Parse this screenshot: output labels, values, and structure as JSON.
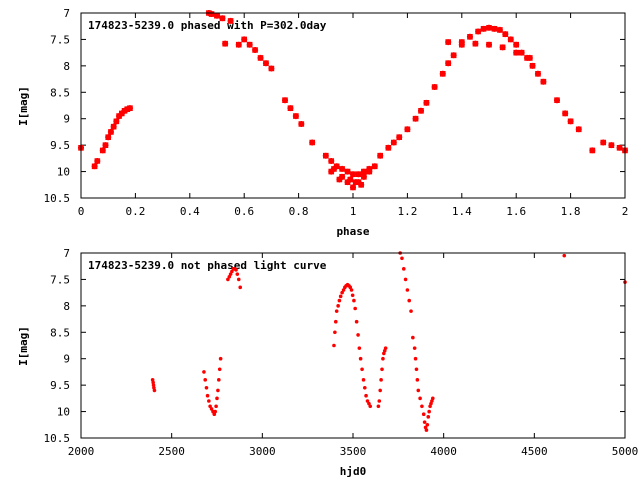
{
  "chart_data": [
    {
      "type": "scatter",
      "title": "174823-5239.0 phased with P=302.0day",
      "xlabel": "phase",
      "ylabel": "I[mag]",
      "xlim": [
        0,
        2
      ],
      "ylim": [
        10.5,
        7
      ],
      "y_inverted": true,
      "xticks": [
        0,
        0.2,
        0.4,
        0.6,
        0.8,
        1,
        1.2,
        1.4,
        1.6,
        1.8,
        2
      ],
      "xtick_labels": [
        "0",
        "0.2",
        "0.4",
        "0.6",
        "0.8",
        "1",
        "1.2",
        "1.4",
        "1.6",
        "1.8",
        "2"
      ],
      "yticks": [
        7,
        7.5,
        8,
        8.5,
        9,
        9.5,
        10,
        10.5
      ],
      "ytick_labels": [
        "7",
        "7.5",
        "8",
        "8.5",
        "9",
        "9.5",
        "10",
        "10.5"
      ],
      "marker_color": "#ff0000",
      "marker": "plus",
      "grid": false,
      "series": [
        {
          "x": [
            0.0,
            0.05,
            0.06,
            0.08,
            0.09,
            0.1,
            0.11,
            0.12,
            0.13,
            0.14,
            0.15,
            0.16,
            0.17,
            0.18,
            0.47,
            0.48,
            0.5,
            0.52,
            0.55,
            0.6,
            0.62,
            0.64,
            0.66,
            0.68,
            0.7,
            0.75,
            0.77,
            0.79,
            0.81,
            0.85,
            0.9,
            0.92,
            0.94,
            0.96,
            0.98,
            1.0,
            1.02,
            1.04,
            1.06,
            1.1,
            1.13,
            1.15,
            1.17,
            1.2,
            1.23,
            1.25,
            1.27,
            1.3,
            1.33,
            1.35,
            1.37,
            1.4,
            1.43,
            1.46,
            1.48,
            1.5,
            1.52,
            1.54,
            1.56,
            1.58,
            1.6,
            1.62,
            1.64,
            1.66,
            1.68,
            1.7,
            1.75,
            1.78,
            1.8,
            1.83,
            1.88,
            1.92,
            1.95,
            1.98,
            2.0,
            0.92,
            0.95,
            0.98,
            1.0,
            1.02,
            1.04,
            1.06,
            1.08,
            1.35,
            1.4,
            1.45,
            1.5,
            1.55,
            1.6,
            1.65,
            0.93,
            0.96,
            0.99,
            1.01,
            1.03,
            0.53,
            0.58,
            0.5
          ],
          "y": [
            9.55,
            9.9,
            9.8,
            9.6,
            9.5,
            9.35,
            9.25,
            9.15,
            9.05,
            8.95,
            8.9,
            8.85,
            8.82,
            8.8,
            7.0,
            7.02,
            7.05,
            7.1,
            7.15,
            7.5,
            7.6,
            7.7,
            7.85,
            7.95,
            8.05,
            8.65,
            8.8,
            8.95,
            9.1,
            9.45,
            9.7,
            9.8,
            9.9,
            9.95,
            10.0,
            10.05,
            10.05,
            10.0,
            9.95,
            9.7,
            9.55,
            9.45,
            9.35,
            9.2,
            9.0,
            8.85,
            8.7,
            8.4,
            8.15,
            7.95,
            7.8,
            7.6,
            7.45,
            7.35,
            7.3,
            7.28,
            7.3,
            7.32,
            7.4,
            7.5,
            7.6,
            7.75,
            7.85,
            8.0,
            8.15,
            8.3,
            8.65,
            8.9,
            9.05,
            9.2,
            9.6,
            9.45,
            9.5,
            9.55,
            9.6,
            10.0,
            10.15,
            10.2,
            10.3,
            10.2,
            10.1,
            10.0,
            9.9,
            7.55,
            7.55,
            7.58,
            7.6,
            7.65,
            7.75,
            7.85,
            9.95,
            10.1,
            10.15,
            10.2,
            10.25,
            7.58,
            7.6,
            7.05
          ]
        }
      ]
    },
    {
      "type": "scatter",
      "title": "174823-5239.0 not phased light curve",
      "xlabel": "hjd0",
      "ylabel": "I[mag]",
      "xlim": [
        2000,
        5000
      ],
      "ylim": [
        10.5,
        7
      ],
      "y_inverted": true,
      "xticks": [
        2000,
        2500,
        3000,
        3500,
        4000,
        4500,
        5000
      ],
      "xtick_labels": [
        "2000",
        "2500",
        "3000",
        "3500",
        "4000",
        "4500",
        "5000"
      ],
      "yticks": [
        7,
        7.5,
        8,
        8.5,
        9,
        9.5,
        10,
        10.5
      ],
      "ytick_labels": [
        "7",
        "7.5",
        "8",
        "8.5",
        "9",
        "9.5",
        "10",
        "10.5"
      ],
      "marker_color": "#ff0000",
      "marker": "dot",
      "grid": false,
      "series": [
        {
          "x": [
            2395,
            2398,
            2400,
            2402,
            2405,
            2678,
            2685,
            2692,
            2698,
            2705,
            2712,
            2720,
            2728,
            2735,
            2740,
            2745,
            2750,
            2755,
            2760,
            2765,
            2770,
            2810,
            2818,
            2825,
            2832,
            2840,
            2848,
            2855,
            2862,
            2870,
            2878,
            3395,
            3400,
            3405,
            3410,
            3418,
            3425,
            3432,
            3440,
            3448,
            3455,
            3462,
            3470,
            3478,
            3485,
            3492,
            3498,
            3505,
            3512,
            3520,
            3528,
            3535,
            3542,
            3550,
            3558,
            3565,
            3572,
            3580,
            3588,
            3595,
            3640,
            3645,
            3650,
            3655,
            3660,
            3665,
            3670,
            3675,
            3680,
            3760,
            3770,
            3780,
            3790,
            3800,
            3810,
            3820,
            3830,
            3840,
            3845,
            3850,
            3855,
            3860,
            3870,
            3880,
            3890,
            3895,
            3900,
            3905,
            3910,
            3915,
            3920,
            3925,
            3930,
            3935,
            3940,
            4665,
            5000
          ],
          "y": [
            9.4,
            9.45,
            9.5,
            9.55,
            9.6,
            9.25,
            9.4,
            9.55,
            9.7,
            9.8,
            9.9,
            9.95,
            10.0,
            10.05,
            10.0,
            9.9,
            9.75,
            9.6,
            9.4,
            9.2,
            9.0,
            7.5,
            7.45,
            7.4,
            7.35,
            7.3,
            7.3,
            7.32,
            7.4,
            7.5,
            7.65,
            8.75,
            8.5,
            8.3,
            8.1,
            8.0,
            7.9,
            7.82,
            7.75,
            7.7,
            7.65,
            7.62,
            7.6,
            7.62,
            7.65,
            7.7,
            7.8,
            7.9,
            8.05,
            8.3,
            8.55,
            8.8,
            9.0,
            9.2,
            9.4,
            9.55,
            9.7,
            9.8,
            9.85,
            9.9,
            9.9,
            9.8,
            9.6,
            9.4,
            9.2,
            9.0,
            8.9,
            8.85,
            8.8,
            7.0,
            7.1,
            7.3,
            7.5,
            7.7,
            7.9,
            8.1,
            8.6,
            8.8,
            9.0,
            9.2,
            9.4,
            9.6,
            9.75,
            9.9,
            10.05,
            10.2,
            10.3,
            10.35,
            10.25,
            10.1,
            10.0,
            9.9,
            9.85,
            9.8,
            9.75,
            7.05,
            7.55
          ]
        }
      ]
    }
  ]
}
